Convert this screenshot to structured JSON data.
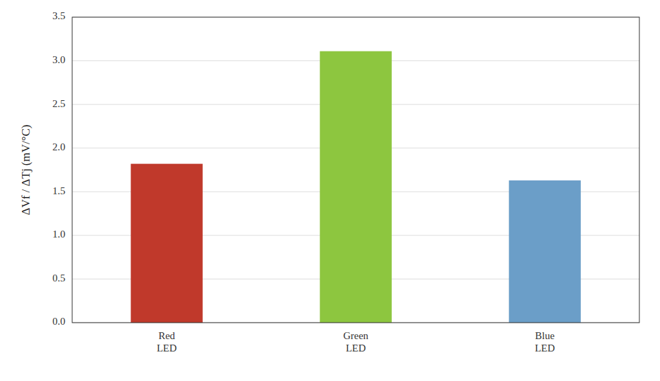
{
  "chart_data": {
    "type": "bar",
    "categories": [
      "Red\nLED",
      "Green\nLED",
      "Blue\nLED"
    ],
    "values": [
      1.82,
      3.11,
      1.63
    ],
    "colors": [
      "#c0392b",
      "#8dc63f",
      "#6b9ec8"
    ],
    "y_label": "ΔVf / ΔTj (mV/°C)",
    "ylim": [
      0,
      3.5
    ],
    "yticks": [
      {
        "value": 0,
        "label": "0.0"
      },
      0.5,
      {
        "value": 1,
        "label": "1.0"
      },
      1.5,
      {
        "value": 2,
        "label": "2.0"
      },
      2.5,
      {
        "value": 3,
        "label": "3.0"
      },
      3.5
    ],
    "grid": true
  }
}
